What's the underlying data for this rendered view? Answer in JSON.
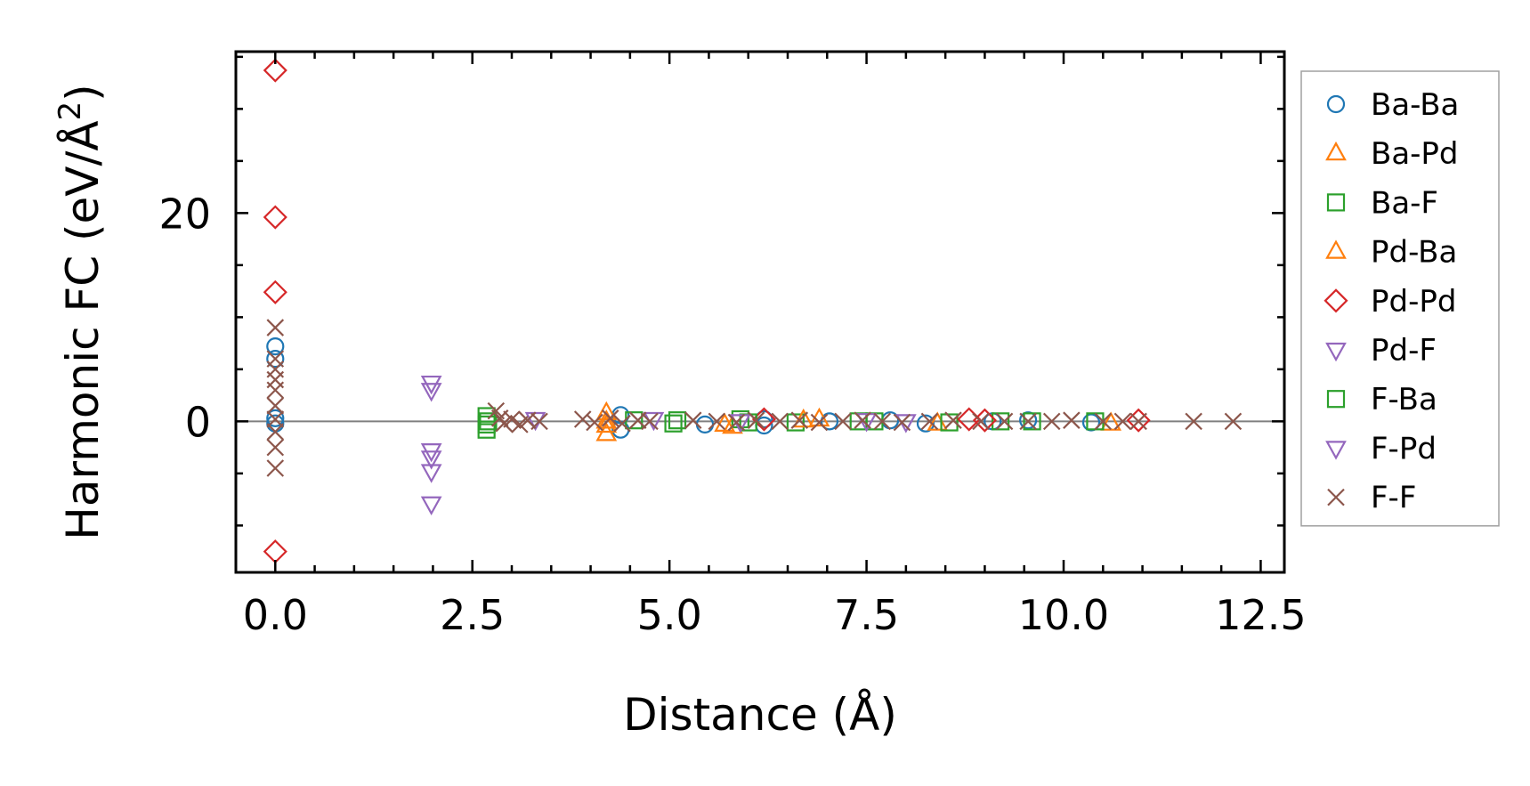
{
  "chart_data": {
    "type": "scatter",
    "xlabel": "Distance (Å)",
    "ylabel": "Harmonic FC (eV/Å",
    "ylabel_superscript": "2",
    "ylabel_close": ")",
    "xlim": [
      -0.5,
      12.8
    ],
    "ylim": [
      -14.5,
      35.5
    ],
    "xticks": [
      0.0,
      2.5,
      5.0,
      7.5,
      10.0,
      12.5
    ],
    "xtick_labels": [
      "0.0",
      "2.5",
      "5.0",
      "7.5",
      "10.0",
      "12.5"
    ],
    "yticks": [
      0,
      20
    ],
    "ytick_labels": [
      "0",
      "20"
    ],
    "zero_line": true,
    "legend_position": "outside-right",
    "series": [
      {
        "name": "Ba-Ba",
        "color": "#1f77b4",
        "marker": "circle",
        "x": [
          0,
          0,
          0,
          0,
          4.38,
          4.38,
          5.45,
          6.2,
          6.2,
          7.03,
          7.8,
          8.25,
          9.1,
          9.55,
          10.35
        ],
        "y": [
          7.2,
          6.0,
          0.3,
          -0.2,
          0.6,
          -0.8,
          -0.3,
          -0.4,
          0.2,
          0.0,
          0.1,
          -0.2,
          0.0,
          0.1,
          -0.1
        ]
      },
      {
        "name": "Ba-Pd",
        "color": "#ff7f0e",
        "marker": "triangle-up",
        "x": [
          4.2,
          4.2,
          4.2,
          5.8,
          6.9,
          8.4,
          10.6
        ],
        "y": [
          0.8,
          -0.4,
          -1.2,
          -0.5,
          0.2,
          -0.2,
          -0.2
        ]
      },
      {
        "name": "Ba-F",
        "color": "#2ca02c",
        "marker": "square",
        "x": [
          2.68,
          2.68,
          2.68,
          4.55,
          5.05,
          5.9,
          6.6,
          7.4,
          8.55,
          9.2,
          10.4
        ],
        "y": [
          0.5,
          -0.3,
          -0.8,
          0.1,
          -0.2,
          0.2,
          -0.1,
          0.0,
          -0.1,
          0.0,
          0.0
        ]
      },
      {
        "name": "Pd-Ba",
        "color": "#ff7f0e",
        "marker": "triangle-up",
        "x": [
          4.2,
          5.7,
          6.7
        ],
        "y": [
          0.0,
          -0.3,
          0.1
        ]
      },
      {
        "name": "Pd-Pd",
        "color": "#d62728",
        "marker": "diamond",
        "x": [
          0,
          0,
          0,
          0,
          6.2,
          8.8,
          9.0,
          10.95
        ],
        "y": [
          33.7,
          19.6,
          12.4,
          -12.5,
          0.2,
          0.2,
          0.1,
          0.1
        ]
      },
      {
        "name": "Pd-F",
        "color": "#9467bd",
        "marker": "triangle-down",
        "x": [
          1.98,
          1.98,
          1.98,
          1.98,
          1.98,
          1.98
        ],
        "y": [
          3.7,
          3.0,
          -2.8,
          -3.5,
          -4.8,
          -7.9
        ]
      },
      {
        "name": "F-Ba",
        "color": "#2ca02c",
        "marker": "square",
        "x": [
          2.7,
          5.1,
          6.0,
          7.6,
          9.6
        ],
        "y": [
          0.0,
          0.1,
          -0.1,
          0.0,
          0.0
        ]
      },
      {
        "name": "F-Pd",
        "color": "#9467bd",
        "marker": "triangle-down",
        "x": [
          3.3,
          4.8,
          5.9,
          7.5,
          8.0
        ],
        "y": [
          0.2,
          0.2,
          0.0,
          0.1,
          0.0
        ]
      },
      {
        "name": "F-F",
        "color": "#8c564b",
        "marker": "x",
        "x": [
          0,
          0,
          0,
          0,
          0,
          0,
          0,
          0,
          0,
          0,
          2.8,
          2.85,
          2.9,
          3.0,
          3.1,
          3.2,
          3.35,
          3.9,
          4.05,
          4.25,
          4.4,
          4.6,
          4.75,
          5.3,
          5.6,
          5.85,
          6.1,
          6.4,
          6.65,
          6.9,
          7.2,
          7.45,
          7.7,
          7.95,
          8.3,
          8.6,
          8.95,
          9.25,
          9.55,
          9.85,
          10.1,
          10.5,
          10.75,
          10.95,
          11.65,
          12.15
        ],
        "y": [
          9.0,
          6.0,
          5.0,
          4.0,
          3.0,
          1.5,
          0.2,
          -1.0,
          -2.5,
          -4.5,
          1.0,
          0.3,
          -0.2,
          0.2,
          -0.3,
          0.1,
          0.0,
          0.2,
          -0.1,
          0.3,
          -0.2,
          0.1,
          0.0,
          0.1,
          0.0,
          -0.1,
          0.1,
          0.0,
          0.1,
          -0.1,
          0.0,
          0.1,
          0.0,
          -0.1,
          0.0,
          0.1,
          0.0,
          0.0,
          0.0,
          0.0,
          0.1,
          0.0,
          0.0,
          0.0,
          0.0,
          0.0
        ]
      }
    ]
  }
}
